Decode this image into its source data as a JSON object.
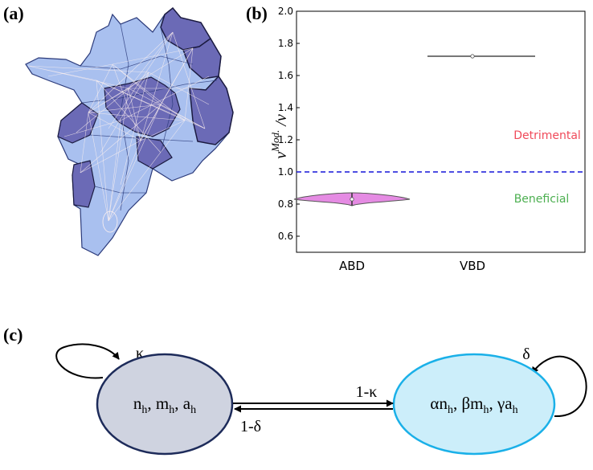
{
  "labels": {
    "a": "(a)",
    "b": "(b)",
    "c": "(c)"
  },
  "colors": {
    "region_light": "#a9c0ef",
    "region_dark": "#6b6ab6",
    "violin": "#e58be3",
    "threshold": "#1515d8",
    "detrimental": "#f04a5a",
    "beneficial": "#4caf50",
    "state1_fill": "#cfd3e0",
    "state1_stroke": "#1d2b5a",
    "state2_fill": "#cceefa",
    "state2_stroke": "#1ab0e8"
  },
  "chart_data": {
    "type": "violin",
    "categories": [
      "ABD",
      "VBD"
    ],
    "series": [
      {
        "category": "ABD",
        "median": 0.83,
        "min": 0.8,
        "max": 0.86
      },
      {
        "category": "VBD",
        "median": 1.72,
        "min": 1.71,
        "max": 1.73
      }
    ],
    "ylabel": "ν^Mod. /ν",
    "ylim": [
      0.5,
      2.0
    ],
    "yticks": [
      "0.6",
      "0.8",
      "1.0",
      "1.2",
      "1.4",
      "1.6",
      "1.8",
      "2.0"
    ],
    "threshold": 1.0,
    "annotations": {
      "above": "Detrimental",
      "below": "Beneficial"
    }
  },
  "diagram": {
    "state1": [
      "n",
      "m",
      "a"
    ],
    "state1_sub": "h",
    "state2": [
      {
        "coef": "α",
        "var": "n"
      },
      {
        "coef": "β",
        "var": "m"
      },
      {
        "coef": "γ",
        "var": "a"
      }
    ],
    "loop1_label": "κ",
    "loop2_label": "δ",
    "forward_label": "1-κ",
    "backward_label": "1-δ"
  }
}
